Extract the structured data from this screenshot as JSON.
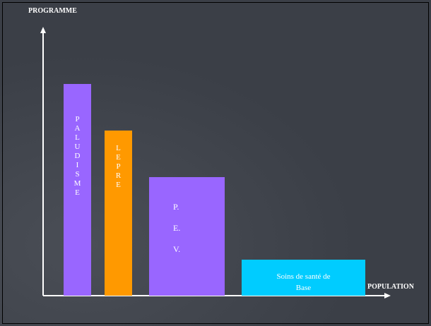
{
  "chart_data": {
    "type": "bar",
    "title": "",
    "ylabel": "PROGRAMME",
    "xlabel": "POPULATION",
    "ylim": [
      0,
      100
    ],
    "grid": false,
    "bars": [
      {
        "label": "PALUDISME",
        "value": 100,
        "color": "#9966ff",
        "text_color": "#ffffff",
        "orientation": "vertical-letters"
      },
      {
        "label": "LEPRE",
        "value": 78,
        "color": "#ff9900",
        "text_color": "#ffffff",
        "orientation": "vertical-letters"
      },
      {
        "label": "P.E.V.",
        "value": 56,
        "color": "#9966ff",
        "text_color": "#ffffff",
        "orientation": "dot-groups"
      },
      {
        "label": "Soins de santé de Base",
        "value": 17,
        "color": "#00ccff",
        "text_color": "#ffffff",
        "orientation": "wrapped"
      }
    ]
  }
}
